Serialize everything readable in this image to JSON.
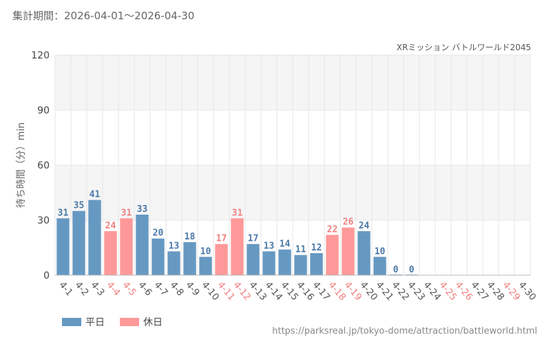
{
  "header": {
    "period": "集計期間：2026-04-01〜2026-04-30"
  },
  "footer": {
    "url": "https://parksreal.jp/tokyo-dome/attraction/battleworld.html"
  },
  "colors": {
    "weekday": "#6699c2",
    "holiday": "#ff9999",
    "weekday_text": "#4a78a8",
    "holiday_text": "#f08080",
    "band": "#f5f5f5",
    "grid": "#e6e6e6"
  },
  "chart_data": {
    "type": "bar",
    "title": "XRミッション バトルワールド2045",
    "ylabel": "待ち時間（分）min",
    "ylim": [
      0,
      120
    ],
    "yticks": [
      "0",
      "30",
      "60",
      "90",
      "120"
    ],
    "categories": [
      "4-1",
      "4-2",
      "4-3",
      "4-4",
      "4-5",
      "4-6",
      "4-7",
      "4-8",
      "4-9",
      "4-10",
      "4-11",
      "4-12",
      "4-13",
      "4-14",
      "4-15",
      "4-16",
      "4-17",
      "4-18",
      "4-19",
      "4-20",
      "4-21",
      "4-22",
      "4-23",
      "4-24",
      "4-25",
      "4-26",
      "4-27",
      "4-28",
      "4-29",
      "4-30"
    ],
    "values": [
      31,
      35,
      41,
      24,
      31,
      33,
      20,
      13,
      18,
      10,
      17,
      31,
      17,
      13,
      14,
      11,
      12,
      22,
      26,
      24,
      10,
      0,
      0,
      null,
      null,
      null,
      null,
      null,
      null,
      null
    ],
    "labels": [
      "31",
      "35",
      "41",
      "24",
      "31",
      "33",
      "20",
      "13",
      "18",
      "10",
      "17",
      "31",
      "17",
      "13",
      "14",
      "11",
      "12",
      "22",
      "26",
      "24",
      "10",
      "0",
      "0",
      "",
      "",
      "",
      "",
      "",
      "",
      ""
    ],
    "day_type": [
      "weekday",
      "weekday",
      "weekday",
      "holiday",
      "holiday",
      "weekday",
      "weekday",
      "weekday",
      "weekday",
      "weekday",
      "holiday",
      "holiday",
      "weekday",
      "weekday",
      "weekday",
      "weekday",
      "weekday",
      "holiday",
      "holiday",
      "weekday",
      "weekday",
      "weekday",
      "weekday",
      "weekday",
      "holiday",
      "holiday",
      "weekday",
      "weekday",
      "holiday",
      "weekday"
    ],
    "legend": [
      {
        "name": "平日",
        "type": "weekday"
      },
      {
        "name": "休日",
        "type": "holiday"
      }
    ],
    "legend_position": "bottom-left",
    "grid": true
  }
}
